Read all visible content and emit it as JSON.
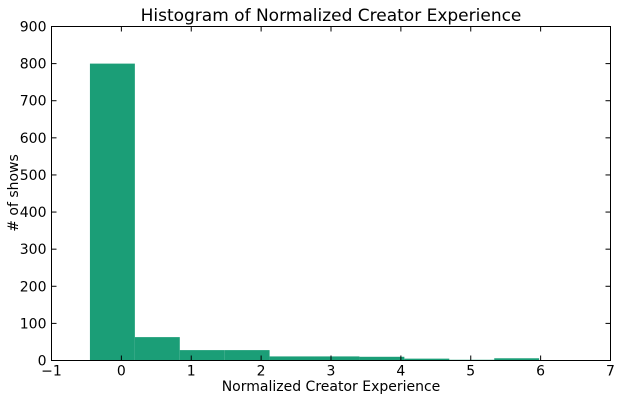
{
  "chart_data": {
    "type": "bar",
    "title": "Histogram of Normalized Creator Experience",
    "xlabel": "Normalized Creator Experience",
    "ylabel": "# of shows",
    "xlim": [
      -1,
      7
    ],
    "ylim": [
      0,
      900
    ],
    "xticks": [
      "−1",
      "0",
      "1",
      "2",
      "3",
      "4",
      "5",
      "6",
      "7"
    ],
    "yticks": [
      "0",
      "100",
      "200",
      "300",
      "400",
      "500",
      "600",
      "700",
      "800",
      "900"
    ],
    "bin_edges": [
      -0.45,
      0.193,
      0.836,
      1.479,
      2.121,
      2.764,
      3.407,
      4.05,
      4.693,
      5.336,
      5.979
    ],
    "values": [
      800,
      63,
      28,
      28,
      11,
      11,
      10,
      5,
      2,
      6
    ],
    "bar_color": "#1b9e77",
    "grid": false
  }
}
